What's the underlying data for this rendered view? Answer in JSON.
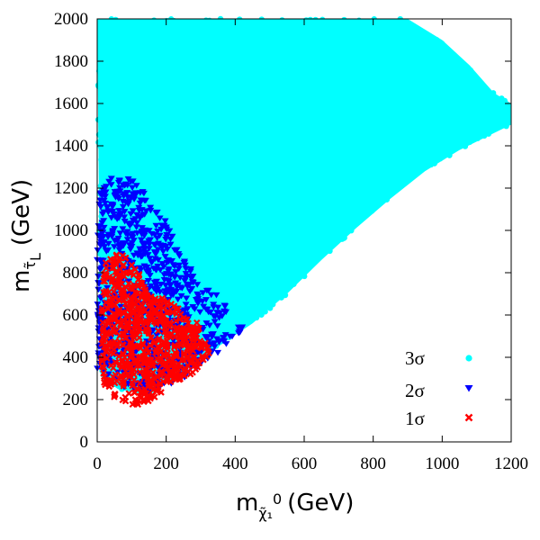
{
  "chart_data": {
    "type": "scatter",
    "xlabel": {
      "main": "m",
      "sub": "χ̃₁",
      "sup": "0",
      "unit": "(GeV)"
    },
    "ylabel": {
      "main": "m",
      "sub": "τ̃",
      "subsub": "L",
      "unit": "(GeV)"
    },
    "xlim": [
      0,
      1200
    ],
    "ylim": [
      0,
      2000
    ],
    "xticks": [
      0,
      200,
      400,
      600,
      800,
      1000,
      1200
    ],
    "yticks": [
      0,
      200,
      400,
      600,
      800,
      1000,
      1200,
      1400,
      1600,
      1800,
      2000
    ],
    "grid": false,
    "legend_position": "bottom-right",
    "series": [
      {
        "name": "3σ",
        "marker": "circle",
        "color": "#00ffff",
        "region": {
          "description": "dense filled region",
          "boundary": [
            [
              10,
              310
            ],
            [
              60,
              250
            ],
            [
              150,
              220
            ],
            [
              250,
              330
            ],
            [
              350,
              450
            ],
            [
              450,
              560
            ],
            [
              550,
              700
            ],
            [
              650,
              860
            ],
            [
              750,
              1010
            ],
            [
              850,
              1150
            ],
            [
              950,
              1280
            ],
            [
              1050,
              1380
            ],
            [
              1150,
              1460
            ],
            [
              1200,
              1500
            ],
            [
              1200,
              1600
            ],
            [
              1150,
              1650
            ],
            [
              1080,
              1780
            ],
            [
              1000,
              1900
            ],
            [
              900,
              2000
            ],
            [
              0,
              2000
            ]
          ]
        }
      },
      {
        "name": "2σ",
        "marker": "triangle-down",
        "color": "#0000ff",
        "region": {
          "description": "lower-left band",
          "boundary": [
            [
              0,
              330
            ],
            [
              60,
              260
            ],
            [
              150,
              230
            ],
            [
              250,
              300
            ],
            [
              350,
              420
            ],
            [
              430,
              520
            ],
            [
              380,
              640
            ],
            [
              300,
              780
            ],
            [
              240,
              900
            ],
            [
              200,
              1040
            ],
            [
              150,
              1150
            ],
            [
              100,
              1240
            ],
            [
              50,
              1260
            ],
            [
              10,
              1200
            ],
            [
              0,
              1000
            ]
          ]
        }
      },
      {
        "name": "1σ",
        "marker": "x",
        "color": "#ff0000",
        "region": {
          "description": "compact low-mass cluster",
          "boundary": [
            [
              20,
              260
            ],
            [
              60,
              190
            ],
            [
              110,
              170
            ],
            [
              160,
              200
            ],
            [
              210,
              260
            ],
            [
              280,
              330
            ],
            [
              330,
              420
            ],
            [
              300,
              560
            ],
            [
              220,
              650
            ],
            [
              150,
              720
            ],
            [
              110,
              840
            ],
            [
              60,
              900
            ],
            [
              20,
              840
            ],
            [
              10,
              600
            ],
            [
              10,
              380
            ]
          ]
        }
      }
    ]
  }
}
